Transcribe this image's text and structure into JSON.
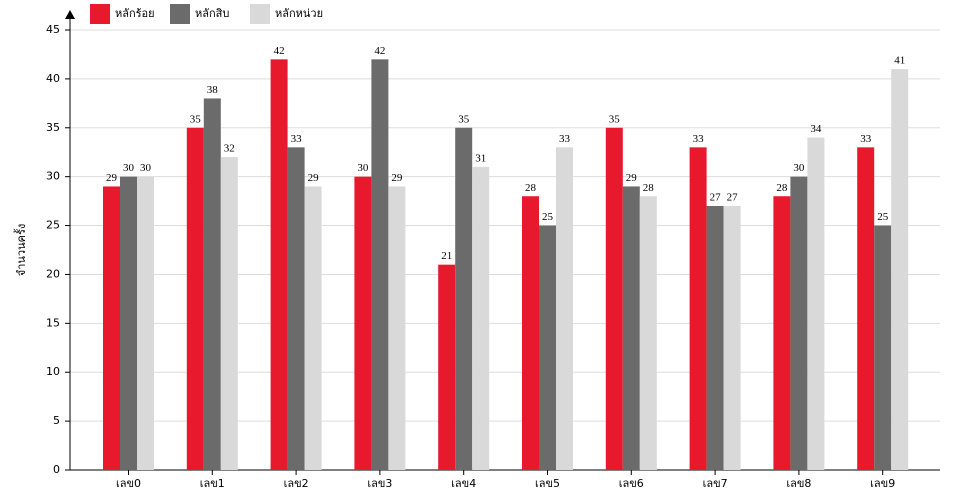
{
  "chart_data": {
    "type": "bar",
    "y_label": "จำนวนครั้ง",
    "categories": [
      "เลข0",
      "เลข1",
      "เลข2",
      "เลข3",
      "เลข4",
      "เลข5",
      "เลข6",
      "เลข7",
      "เลข8",
      "เลข9"
    ],
    "series": [
      {
        "name": "หลักร้อย",
        "color": "#e8192c",
        "values": [
          29,
          35,
          42,
          30,
          21,
          28,
          35,
          33,
          28,
          33
        ]
      },
      {
        "name": "หลักสิบ",
        "color": "#6b6b6b",
        "values": [
          30,
          38,
          33,
          42,
          35,
          25,
          29,
          27,
          30,
          25
        ]
      },
      {
        "name": "หลักหน่วย",
        "color": "#d9d9d9",
        "values": [
          30,
          32,
          29,
          29,
          31,
          33,
          28,
          27,
          34,
          41
        ]
      }
    ],
    "ylim": [
      0,
      45
    ],
    "yticks": [
      0,
      5,
      10,
      15,
      20,
      25,
      30,
      35,
      40,
      45
    ],
    "grid": true
  }
}
